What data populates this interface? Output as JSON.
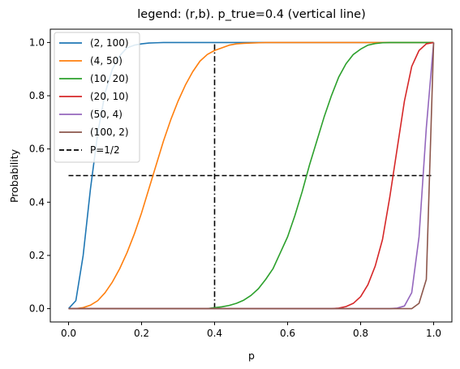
{
  "chart_data": {
    "type": "line",
    "title": "legend: (r,b). p_true=0.4 (vertical line)",
    "xlabel": "p",
    "ylabel": "Probability",
    "xlim": [
      -0.05,
      1.05
    ],
    "ylim": [
      -0.05,
      1.05
    ],
    "xticks": [
      0.0,
      0.2,
      0.4,
      0.6,
      0.8,
      1.0
    ],
    "yticks": [
      0.0,
      0.2,
      0.4,
      0.6,
      0.8,
      1.0
    ],
    "xtick_labels": [
      "0.0",
      "0.2",
      "0.4",
      "0.6",
      "0.8",
      "1.0"
    ],
    "ytick_labels": [
      "0.0",
      "0.2",
      "0.4",
      "0.6",
      "0.8",
      "1.0"
    ],
    "grid": false,
    "legend_position": "top-left",
    "x": [
      0.0,
      0.02,
      0.04,
      0.06,
      0.08,
      0.1,
      0.12,
      0.14,
      0.16,
      0.18,
      0.2,
      0.22,
      0.24,
      0.26,
      0.28,
      0.3,
      0.32,
      0.34,
      0.36,
      0.38,
      0.4,
      0.42,
      0.44,
      0.46,
      0.48,
      0.5,
      0.52,
      0.54,
      0.56,
      0.58,
      0.6,
      0.62,
      0.64,
      0.66,
      0.68,
      0.7,
      0.72,
      0.74,
      0.76,
      0.78,
      0.8,
      0.82,
      0.84,
      0.86,
      0.88,
      0.9,
      0.92,
      0.94,
      0.96,
      0.98,
      1.0
    ],
    "series": [
      {
        "name": "(2, 100)",
        "color": "#1f77b4",
        "values": [
          0.0,
          0.03,
          0.2,
          0.45,
          0.66,
          0.81,
          0.9,
          0.95,
          0.98,
          0.99,
          0.995,
          0.998,
          0.999,
          1.0,
          1.0,
          1.0,
          1.0,
          1.0,
          1.0,
          1.0,
          1.0,
          1.0,
          1.0,
          1.0,
          1.0,
          1.0,
          1.0,
          1.0,
          1.0,
          1.0,
          1.0,
          1.0,
          1.0,
          1.0,
          1.0,
          1.0,
          1.0,
          1.0,
          1.0,
          1.0,
          1.0,
          1.0,
          1.0,
          1.0,
          1.0,
          1.0,
          1.0,
          1.0,
          1.0,
          1.0,
          1.0
        ]
      },
      {
        "name": "(4, 50)",
        "color": "#ff7f0e",
        "values": [
          0.0,
          0.0,
          0.004,
          0.013,
          0.03,
          0.06,
          0.1,
          0.15,
          0.21,
          0.28,
          0.36,
          0.45,
          0.54,
          0.63,
          0.71,
          0.78,
          0.84,
          0.89,
          0.93,
          0.955,
          0.97,
          0.98,
          0.99,
          0.995,
          0.997,
          0.998,
          0.999,
          1.0,
          1.0,
          1.0,
          1.0,
          1.0,
          1.0,
          1.0,
          1.0,
          1.0,
          1.0,
          1.0,
          1.0,
          1.0,
          1.0,
          1.0,
          1.0,
          1.0,
          1.0,
          1.0,
          1.0,
          1.0,
          1.0,
          1.0,
          1.0
        ]
      },
      {
        "name": "(10, 20)",
        "color": "#2ca02c",
        "values": [
          0.0,
          0.0,
          0.0,
          0.0,
          0.0,
          0.0,
          0.0,
          0.0,
          0.0,
          0.0,
          0.0,
          0.0,
          0.0,
          0.0,
          0.0,
          0.0,
          0.0,
          0.0,
          0.0,
          0.0,
          0.004,
          0.007,
          0.012,
          0.02,
          0.032,
          0.05,
          0.075,
          0.11,
          0.15,
          0.21,
          0.27,
          0.35,
          0.44,
          0.54,
          0.63,
          0.72,
          0.8,
          0.87,
          0.92,
          0.955,
          0.975,
          0.99,
          0.996,
          0.999,
          1.0,
          1.0,
          1.0,
          1.0,
          1.0,
          1.0,
          1.0
        ]
      },
      {
        "name": "(20, 10)",
        "color": "#d62728",
        "values": [
          0.0,
          0.0,
          0.0,
          0.0,
          0.0,
          0.0,
          0.0,
          0.0,
          0.0,
          0.0,
          0.0,
          0.0,
          0.0,
          0.0,
          0.0,
          0.0,
          0.0,
          0.0,
          0.0,
          0.0,
          0.0,
          0.0,
          0.0,
          0.0,
          0.0,
          0.0,
          0.0,
          0.0,
          0.0,
          0.0,
          0.0,
          0.0,
          0.0,
          0.0,
          0.0,
          0.0,
          0.0,
          0.002,
          0.008,
          0.02,
          0.045,
          0.09,
          0.16,
          0.26,
          0.42,
          0.6,
          0.78,
          0.91,
          0.97,
          0.995,
          1.0
        ]
      },
      {
        "name": "(50, 4)",
        "color": "#9467bd",
        "values": [
          0.0,
          0.0,
          0.0,
          0.0,
          0.0,
          0.0,
          0.0,
          0.0,
          0.0,
          0.0,
          0.0,
          0.0,
          0.0,
          0.0,
          0.0,
          0.0,
          0.0,
          0.0,
          0.0,
          0.0,
          0.0,
          0.0,
          0.0,
          0.0,
          0.0,
          0.0,
          0.0,
          0.0,
          0.0,
          0.0,
          0.0,
          0.0,
          0.0,
          0.0,
          0.0,
          0.0,
          0.0,
          0.0,
          0.0,
          0.0,
          0.0,
          0.0,
          0.0,
          0.0,
          0.0,
          0.002,
          0.01,
          0.06,
          0.27,
          0.68,
          1.0
        ]
      },
      {
        "name": "(100, 2)",
        "color": "#8c564b",
        "values": [
          0.0,
          0.0,
          0.0,
          0.0,
          0.0,
          0.0,
          0.0,
          0.0,
          0.0,
          0.0,
          0.0,
          0.0,
          0.0,
          0.0,
          0.0,
          0.0,
          0.0,
          0.0,
          0.0,
          0.0,
          0.0,
          0.0,
          0.0,
          0.0,
          0.0,
          0.0,
          0.0,
          0.0,
          0.0,
          0.0,
          0.0,
          0.0,
          0.0,
          0.0,
          0.0,
          0.0,
          0.0,
          0.0,
          0.0,
          0.0,
          0.0,
          0.0,
          0.0,
          0.0,
          0.0,
          0.0,
          0.0,
          0.0,
          0.02,
          0.11,
          1.0
        ]
      }
    ],
    "reference_lines": [
      {
        "name": "P=1/2",
        "orientation": "horizontal",
        "y": 0.5,
        "x_range": [
          0.0,
          1.0
        ],
        "color": "#000000",
        "style": "dashed",
        "in_legend": true
      },
      {
        "name": "p_true",
        "orientation": "vertical",
        "x": 0.4,
        "y_range": [
          0.0,
          1.0
        ],
        "color": "#000000",
        "style": "dashdot",
        "in_legend": false
      }
    ]
  }
}
